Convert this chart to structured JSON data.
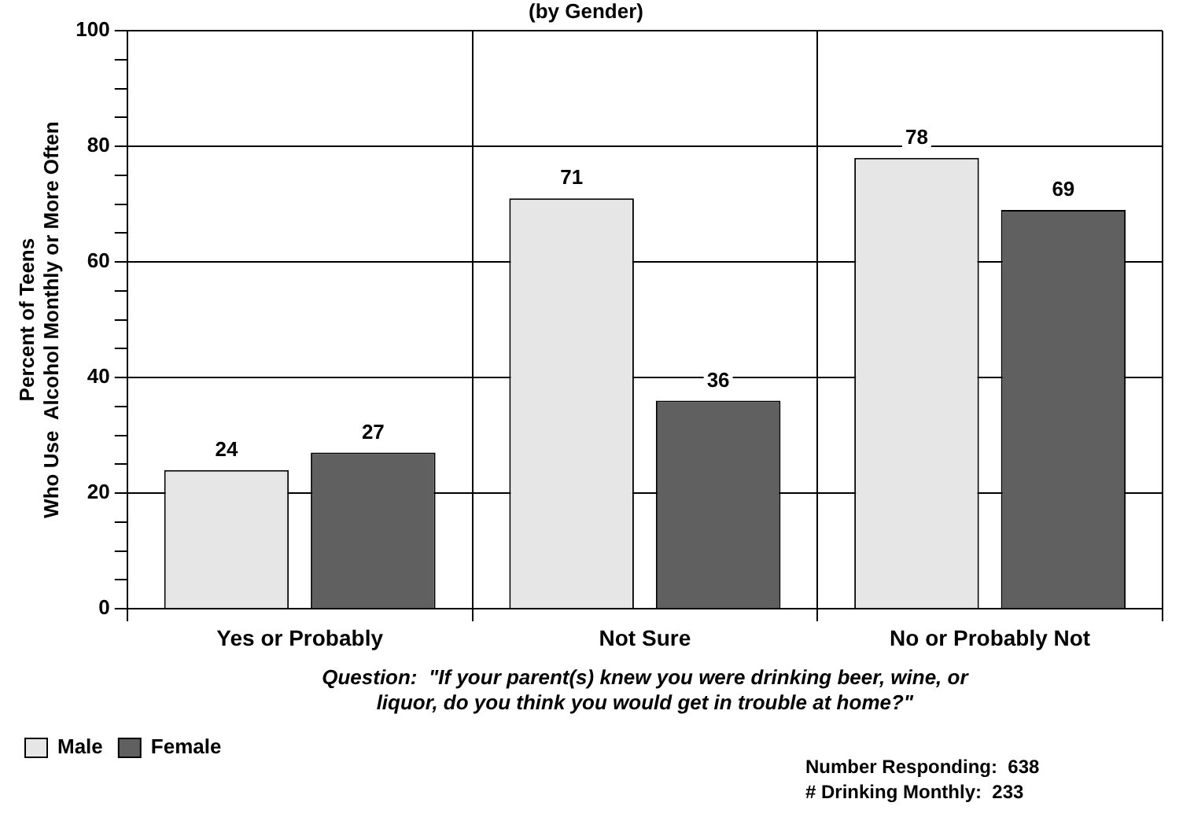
{
  "chart_data": {
    "type": "bar",
    "title": "(by Gender)",
    "ylabel": "Percent of Teens\nWho Use  Alcohol Monthly or More Often",
    "categories": [
      "Yes or Probably",
      "Not Sure",
      "No or Probably Not"
    ],
    "series": [
      {
        "name": "Male",
        "color": "#e6e6e6",
        "values": [
          24,
          71,
          78
        ]
      },
      {
        "name": "Female",
        "color": "#606060",
        "values": [
          27,
          36,
          69
        ]
      }
    ],
    "ylim": [
      0,
      100
    ],
    "yticks": [
      0,
      {
        "value": 5,
        "label": null
      },
      {
        "value": 10,
        "label": null
      },
      {
        "value": 15,
        "label": null
      },
      20,
      {
        "value": 25,
        "label": null
      },
      {
        "value": 30,
        "label": null
      },
      {
        "value": 35,
        "label": null
      },
      40,
      {
        "value": 45,
        "label": null
      },
      {
        "value": 50,
        "label": null
      },
      {
        "value": 55,
        "label": null
      },
      60,
      {
        "value": 65,
        "label": null
      },
      {
        "value": 70,
        "label": null
      },
      {
        "value": 75,
        "label": null
      },
      80,
      {
        "value": 85,
        "label": null
      },
      {
        "value": 90,
        "label": null
      },
      {
        "value": 95,
        "label": null
      },
      100
    ],
    "grid": true,
    "legend": "bottom left",
    "data_labels": true,
    "annotations": [
      "Question:  \"If your parent(s) knew you were drinking beer, wine, or\nliquor, do you think you would get in trouble at home?\"",
      "Number Responding:  638",
      "# Drinking Monthly:  233"
    ]
  }
}
